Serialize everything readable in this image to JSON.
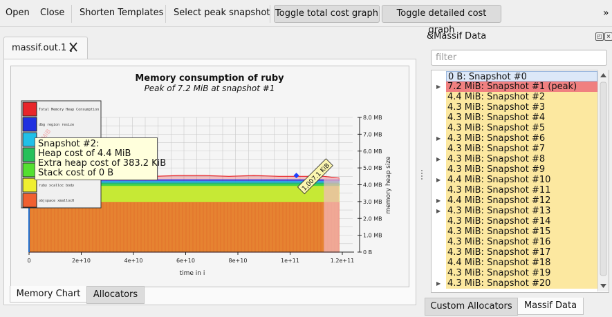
{
  "toolbar": {
    "open": "Open",
    "close": "Close",
    "shorten": "Shorten Templates",
    "select_peak": "Select peak snapshot",
    "toggle_total": "Toggle total cost graph",
    "toggle_detailed": "Toggle detailed cost graph",
    "overflow": "»"
  },
  "document_tab": {
    "label": "massif.out.1"
  },
  "chart_data": {
    "type": "area",
    "title": "Memory consumption of ruby",
    "subtitle": "Peak of 7.2 MiB at snapshot #1",
    "xlabel": "time in i",
    "ylabel": "memory heap size",
    "x_ticks": [
      "0",
      "2e+10",
      "4e+10",
      "6e+10",
      "8e+10",
      "1e+11",
      "1.2e+11"
    ],
    "y_ticks": [
      "0 B",
      "1.0 MB",
      "2.0 MB",
      "3.0 MB",
      "4.0 MB",
      "5.0 MB",
      "6.0 MB",
      "7.0 MB",
      "8.0 MB"
    ],
    "xlim": [
      0,
      124000000000
    ],
    "ylim": [
      0,
      8
    ],
    "series": [
      {
        "name": "Total Memory Heap Consumption",
        "color": "#e8252a",
        "points": [
          [
            0,
            7.2
          ],
          [
            2000000000,
            4.6
          ],
          [
            10000000000,
            4.5
          ],
          [
            20000000000,
            4.55
          ],
          [
            30000000000,
            4.5
          ],
          [
            40000000000,
            4.55
          ],
          [
            50000000000,
            4.5
          ],
          [
            60000000000,
            4.55
          ],
          [
            70000000000,
            4.55
          ],
          [
            80000000000,
            4.5
          ],
          [
            90000000000,
            4.55
          ],
          [
            100000000000,
            4.5
          ],
          [
            107000000000,
            4.5
          ],
          [
            118000000000,
            4.5
          ],
          [
            124000000000,
            4.4
          ]
        ]
      },
      {
        "name": "dbg region resize",
        "color": "#2030e0",
        "points": [
          [
            0,
            4.3
          ],
          [
            124000000000,
            4.3
          ]
        ]
      },
      {
        "name": "",
        "color": "#20c0e8",
        "points": [
          [
            0,
            4.2
          ],
          [
            124000000000,
            4.2
          ]
        ]
      },
      {
        "name": "",
        "color": "#26c05a",
        "points": [
          [
            0,
            4.1
          ],
          [
            124000000000,
            4.1
          ]
        ]
      },
      {
        "name": "",
        "color": "#54e030",
        "points": [
          [
            0,
            4.0
          ],
          [
            124000000000,
            4.0
          ]
        ]
      },
      {
        "name": "ruby xcalloc body",
        "color": "#f0ef30",
        "points": [
          [
            0,
            3.9
          ],
          [
            124000000000,
            3.9
          ]
        ]
      },
      {
        "name": "objspace xmalloc0",
        "color": "#f06030",
        "points": [
          [
            0,
            2.95
          ],
          [
            124000000000,
            2.95
          ]
        ]
      }
    ],
    "annotations": [
      {
        "text": "1,007.1 KiB",
        "x": 115000000000,
        "y": 4.6
      },
      {
        "text": "2 MiB",
        "x": 1500000000,
        "y": 7.5
      }
    ],
    "grid": true,
    "legend": "top-left"
  },
  "tooltip": {
    "lines": [
      "Snapshot #2:",
      "Heap cost of 4.4 MiB",
      "Extra heap cost of 383.2 KiB",
      "Stack cost of 0 B"
    ]
  },
  "bottom_tabs": {
    "memory_chart": "Memory Chart",
    "allocators": "Allocators"
  },
  "dock": {
    "title": "&Massif Data",
    "filter_placeholder": "filter",
    "snapshots": [
      {
        "label": "0 B: Snapshot #0",
        "style": "selected",
        "expander": false
      },
      {
        "label": "7.2 MiB: Snapshot #1 (peak)",
        "style": "peak",
        "expander": true
      },
      {
        "label": "4.4 MiB: Snapshot #2",
        "style": "normal",
        "expander": false
      },
      {
        "label": "4.3 MiB: Snapshot #3",
        "style": "normal",
        "expander": false
      },
      {
        "label": "4.3 MiB: Snapshot #4",
        "style": "normal",
        "expander": false
      },
      {
        "label": "4.3 MiB: Snapshot #5",
        "style": "normal",
        "expander": false
      },
      {
        "label": "4.3 MiB: Snapshot #6",
        "style": "normal",
        "expander": true
      },
      {
        "label": "4.3 MiB: Snapshot #7",
        "style": "normal",
        "expander": false
      },
      {
        "label": "4.3 MiB: Snapshot #8",
        "style": "normal",
        "expander": true
      },
      {
        "label": "4.3 MiB: Snapshot #9",
        "style": "normal",
        "expander": false
      },
      {
        "label": "4.4 MiB: Snapshot #10",
        "style": "normal",
        "expander": true
      },
      {
        "label": "4.3 MiB: Snapshot #11",
        "style": "normal",
        "expander": false
      },
      {
        "label": "4.4 MiB: Snapshot #12",
        "style": "normal",
        "expander": true
      },
      {
        "label": "4.3 MiB: Snapshot #13",
        "style": "normal",
        "expander": true
      },
      {
        "label": "4.3 MiB: Snapshot #14",
        "style": "normal",
        "expander": false
      },
      {
        "label": "4.3 MiB: Snapshot #15",
        "style": "normal",
        "expander": false
      },
      {
        "label": "4.3 MiB: Snapshot #16",
        "style": "normal",
        "expander": false
      },
      {
        "label": "4.3 MiB: Snapshot #17",
        "style": "normal",
        "expander": false
      },
      {
        "label": "4.4 MiB: Snapshot #18",
        "style": "normal",
        "expander": false
      },
      {
        "label": "4.3 MiB: Snapshot #19",
        "style": "normal",
        "expander": false
      },
      {
        "label": "4.3 MiB: Snapshot #20",
        "style": "normal",
        "expander": true
      }
    ],
    "tabs": {
      "custom_allocators": "Custom Allocators",
      "massif_data": "Massif Data"
    }
  },
  "colors": {
    "peak": "#f08080",
    "normal": "#fce8a0",
    "selected": "#dce8f8"
  }
}
